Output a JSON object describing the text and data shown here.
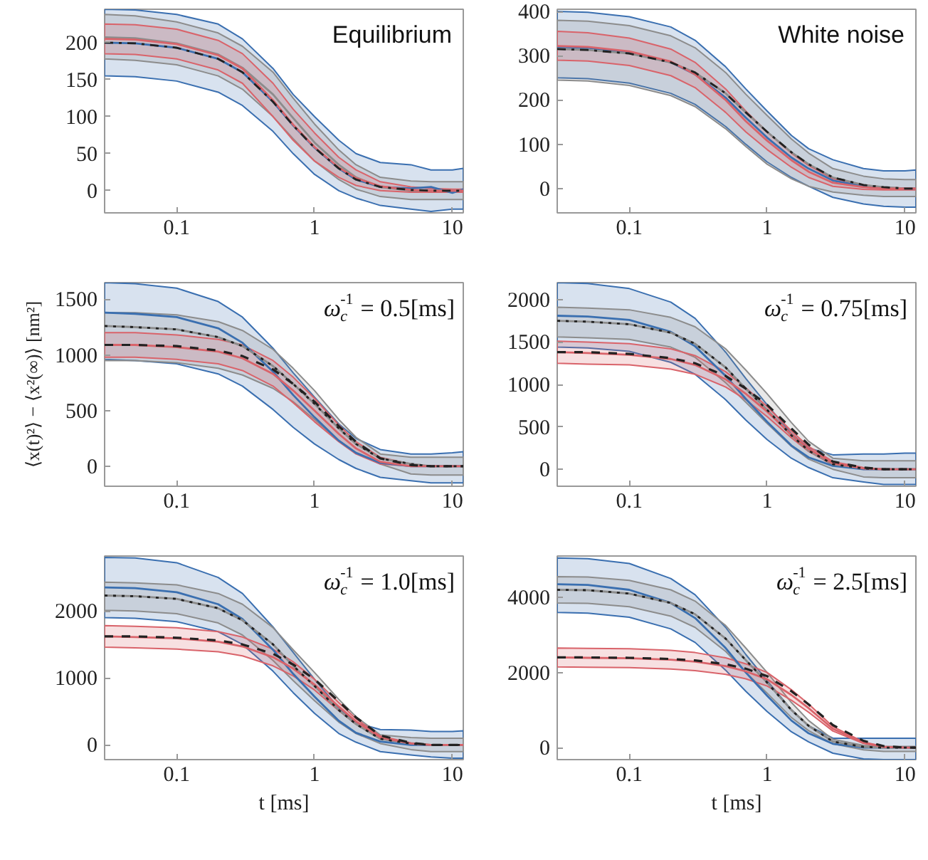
{
  "chart_data": [
    {
      "type": "line",
      "title": "Equilibrium",
      "log": "x",
      "xlim": [
        0.03,
        12
      ],
      "xticks": [
        0.1,
        1,
        10
      ],
      "ylim": [
        -30,
        245
      ],
      "yticks": [
        0,
        50,
        100,
        150,
        200
      ],
      "x": [
        0.03,
        0.05,
        0.1,
        0.2,
        0.3,
        0.5,
        0.7,
        1,
        1.5,
        2,
        3,
        5,
        7,
        10,
        12
      ],
      "series": [
        {
          "color": "#3a6fb0",
          "line_style": "solid",
          "values": [
            200,
            199,
            193,
            178,
            160,
            120,
            88,
            58,
            30,
            15,
            5,
            3,
            5,
            -3,
            2
          ],
          "upper": [
            245,
            244,
            238,
            225,
            205,
            165,
            130,
            100,
            68,
            50,
            38,
            35,
            28,
            28,
            30
          ],
          "lower": [
            155,
            154,
            148,
            133,
            115,
            80,
            50,
            22,
            0,
            -10,
            -20,
            -25,
            -28,
            -25,
            -25
          ]
        },
        {
          "color": "#8c8c8c",
          "line_style": "solid",
          "values": [
            207,
            206,
            199,
            184,
            166,
            130,
            98,
            65,
            35,
            18,
            5,
            0,
            0,
            0,
            0
          ],
          "upper": [
            238,
            236,
            228,
            213,
            195,
            160,
            125,
            90,
            55,
            35,
            18,
            13,
            12,
            12,
            12
          ],
          "lower": [
            178,
            176,
            170,
            155,
            137,
            100,
            70,
            40,
            15,
            2,
            -8,
            -12,
            -12,
            -12,
            -12
          ]
        },
        {
          "color": "#d9636a",
          "line_style": "solid",
          "values": [
            205,
            204,
            198,
            183,
            165,
            122,
            89,
            59,
            31,
            17,
            6,
            1,
            0,
            0,
            0
          ],
          "upper": [
            225,
            224,
            218,
            203,
            185,
            145,
            110,
            78,
            45,
            28,
            12,
            5,
            3,
            2,
            2
          ],
          "lower": [
            185,
            184,
            178,
            163,
            145,
            100,
            68,
            40,
            18,
            7,
            0,
            -2,
            -2,
            -2,
            -2
          ]
        },
        {
          "color": "#222222",
          "line_style": "dashdot",
          "values": [
            200,
            199,
            193,
            178,
            160,
            120,
            88,
            58,
            30,
            15,
            5,
            1,
            0,
            0,
            0
          ]
        }
      ]
    },
    {
      "type": "line",
      "title": "White noise",
      "log": "x",
      "xlim": [
        0.03,
        12
      ],
      "xticks": [
        0.1,
        1,
        10
      ],
      "ylim": [
        -55,
        405
      ],
      "yticks": [
        0,
        100,
        200,
        300,
        400
      ],
      "x": [
        0.03,
        0.05,
        0.1,
        0.2,
        0.3,
        0.5,
        0.7,
        1,
        1.5,
        2,
        3,
        5,
        7,
        10,
        12
      ],
      "series": [
        {
          "color": "#3a6fb0",
          "line_style": "solid",
          "values": [
            320,
            318,
            308,
            285,
            258,
            205,
            160,
            115,
            70,
            45,
            18,
            5,
            2,
            0,
            0
          ],
          "upper": [
            400,
            398,
            388,
            365,
            335,
            275,
            225,
            175,
            120,
            90,
            65,
            45,
            40,
            40,
            42
          ],
          "lower": [
            250,
            248,
            238,
            215,
            190,
            140,
            100,
            60,
            25,
            5,
            -20,
            -35,
            -40,
            -42,
            -42
          ]
        },
        {
          "color": "#8c8c8c",
          "line_style": "solid",
          "values": [
            315,
            313,
            305,
            285,
            262,
            215,
            172,
            128,
            82,
            55,
            25,
            8,
            3,
            0,
            0
          ],
          "upper": [
            380,
            378,
            368,
            345,
            318,
            262,
            213,
            165,
            112,
            80,
            45,
            28,
            22,
            20,
            20
          ],
          "lower": [
            245,
            243,
            233,
            210,
            185,
            135,
            95,
            55,
            22,
            5,
            -8,
            -15,
            -18,
            -18,
            -18
          ]
        },
        {
          "color": "#d9636a",
          "line_style": "solid",
          "values": [
            322,
            320,
            310,
            287,
            258,
            200,
            152,
            108,
            64,
            38,
            13,
            3,
            0,
            0,
            0
          ],
          "upper": [
            355,
            352,
            340,
            315,
            285,
            225,
            175,
            128,
            80,
            52,
            22,
            8,
            3,
            1,
            0
          ],
          "lower": [
            290,
            288,
            278,
            255,
            228,
            172,
            128,
            88,
            48,
            25,
            5,
            -2,
            -3,
            -3,
            -3
          ]
        },
        {
          "color": "#222222",
          "line_style": "dashdot",
          "values": [
            315,
            313,
            305,
            285,
            262,
            215,
            172,
            128,
            82,
            55,
            25,
            8,
            3,
            0,
            0
          ]
        }
      ]
    },
    {
      "type": "line",
      "title": "ω$_{c}$$^{-1}$ = 0.5[ms]",
      "ylabel": "⟨x(t)²⟩ − ⟨x²(∞)⟩ [nm²]",
      "log": "x",
      "xlim": [
        0.03,
        12
      ],
      "xticks": [
        0.1,
        1,
        10
      ],
      "ylim": [
        -180,
        1650
      ],
      "yticks": [
        0,
        500,
        1000,
        1500
      ],
      "x": [
        0.03,
        0.05,
        0.1,
        0.2,
        0.3,
        0.5,
        0.7,
        1,
        1.5,
        2,
        3,
        5,
        7,
        10,
        12
      ],
      "series": [
        {
          "color": "#3a6fb0",
          "line_style": "solid",
          "values": [
            1380,
            1370,
            1340,
            1240,
            1110,
            850,
            640,
            440,
            230,
            120,
            30,
            0,
            0,
            0,
            0
          ],
          "upper": [
            1650,
            1640,
            1600,
            1480,
            1340,
            1060,
            840,
            620,
            380,
            250,
            150,
            110,
            110,
            120,
            130
          ],
          "lower": [
            960,
            950,
            920,
            830,
            720,
            510,
            350,
            200,
            60,
            -20,
            -100,
            -130,
            -150,
            -150,
            -150
          ]
        },
        {
          "color": "#8c8c8c",
          "line_style": "solid",
          "values": [
            1260,
            1250,
            1230,
            1160,
            1080,
            900,
            740,
            560,
            340,
            200,
            70,
            20,
            0,
            0,
            0
          ],
          "upper": [
            1380,
            1380,
            1360,
            1300,
            1220,
            1050,
            880,
            680,
            420,
            260,
            110,
            80,
            80,
            80,
            80
          ],
          "lower": [
            950,
            950,
            930,
            880,
            820,
            700,
            580,
            420,
            230,
            120,
            20,
            -70,
            -80,
            -80,
            -80
          ]
        },
        {
          "color": "#d9636a",
          "line_style": "solid",
          "values": [
            1090,
            1090,
            1070,
            1030,
            970,
            830,
            680,
            500,
            290,
            160,
            40,
            0,
            0,
            0,
            0
          ],
          "upper": [
            1200,
            1200,
            1180,
            1140,
            1090,
            950,
            800,
            610,
            370,
            220,
            80,
            20,
            0,
            0,
            0
          ],
          "lower": [
            980,
            980,
            960,
            920,
            860,
            720,
            570,
            400,
            220,
            110,
            20,
            0,
            0,
            0,
            0
          ]
        },
        {
          "color": "#222222",
          "line_style": "dotted",
          "values": [
            1260,
            1250,
            1230,
            1160,
            1080,
            900,
            740,
            560,
            340,
            200,
            70,
            20,
            0,
            0,
            0
          ]
        },
        {
          "color": "#222222",
          "line_style": "dashed",
          "values": [
            1090,
            1090,
            1080,
            1040,
            990,
            870,
            740,
            580,
            360,
            220,
            70,
            10,
            0,
            0,
            0
          ]
        }
      ]
    },
    {
      "type": "line",
      "title": "ω$_{c}$$^{-1}$ = 0.75[ms]",
      "log": "x",
      "xlim": [
        0.03,
        12
      ],
      "xticks": [
        0.1,
        1,
        10
      ],
      "ylim": [
        -200,
        2200
      ],
      "yticks": [
        0,
        500,
        1000,
        1500,
        2000
      ],
      "x": [
        0.03,
        0.05,
        0.1,
        0.2,
        0.3,
        0.5,
        0.7,
        1,
        1.5,
        2,
        3,
        5,
        7,
        10,
        12
      ],
      "series": [
        {
          "color": "#3a6fb0",
          "line_style": "solid",
          "values": [
            1810,
            1800,
            1760,
            1620,
            1450,
            1100,
            830,
            560,
            280,
            140,
            40,
            0,
            0,
            0,
            0
          ],
          "upper": [
            2200,
            2190,
            2130,
            1970,
            1780,
            1380,
            1070,
            760,
            420,
            250,
            170,
            180,
            180,
            190,
            190
          ],
          "lower": [
            1440,
            1430,
            1390,
            1260,
            1120,
            820,
            580,
            350,
            130,
            20,
            -100,
            -150,
            -180,
            -180,
            -180
          ]
        },
        {
          "color": "#8c8c8c",
          "line_style": "solid",
          "values": [
            1750,
            1740,
            1710,
            1610,
            1480,
            1200,
            950,
            700,
            400,
            220,
            60,
            10,
            0,
            0,
            0
          ],
          "upper": [
            1910,
            1900,
            1880,
            1790,
            1680,
            1420,
            1170,
            890,
            550,
            330,
            130,
            100,
            100,
            100,
            100
          ],
          "lower": [
            1560,
            1550,
            1530,
            1440,
            1320,
            1020,
            790,
            540,
            270,
            120,
            0,
            -90,
            -100,
            -100,
            -100
          ]
        },
        {
          "color": "#d9636a",
          "line_style": "solid",
          "values": [
            1380,
            1370,
            1350,
            1300,
            1230,
            1060,
            890,
            680,
            410,
            240,
            70,
            10,
            0,
            0,
            0
          ],
          "upper": [
            1510,
            1500,
            1480,
            1420,
            1340,
            1150,
            960,
            740,
            450,
            270,
            90,
            20,
            0,
            0,
            0
          ],
          "lower": [
            1250,
            1240,
            1230,
            1180,
            1120,
            970,
            820,
            620,
            370,
            210,
            50,
            0,
            0,
            0,
            0
          ]
        },
        {
          "color": "#222222",
          "line_style": "dotted",
          "values": [
            1750,
            1740,
            1710,
            1610,
            1480,
            1200,
            950,
            700,
            400,
            220,
            60,
            10,
            0,
            0,
            0
          ]
        },
        {
          "color": "#222222",
          "line_style": "dashed",
          "values": [
            1380,
            1380,
            1360,
            1310,
            1250,
            1100,
            950,
            760,
            480,
            290,
            90,
            20,
            0,
            0,
            0
          ]
        }
      ]
    },
    {
      "type": "line",
      "title": "ω$_{c}$$^{-1}$ = 1.0[ms]",
      "xlabel": "t [ms]",
      "log": "x",
      "xlim": [
        0.03,
        12
      ],
      "xticks": [
        0.1,
        1,
        10
      ],
      "ylim": [
        -220,
        2820
      ],
      "yticks": [
        0,
        1000,
        2000
      ],
      "x": [
        0.03,
        0.05,
        0.1,
        0.2,
        0.3,
        0.5,
        0.7,
        1,
        1.5,
        2,
        3,
        5,
        7,
        10,
        12
      ],
      "series": [
        {
          "color": "#3a6fb0",
          "line_style": "solid",
          "values": [
            2350,
            2340,
            2280,
            2100,
            1880,
            1420,
            1060,
            720,
            360,
            180,
            50,
            0,
            0,
            0,
            0
          ],
          "upper": [
            2800,
            2790,
            2720,
            2500,
            2260,
            1760,
            1380,
            980,
            550,
            330,
            230,
            220,
            200,
            200,
            210
          ],
          "lower": [
            1900,
            1890,
            1840,
            1690,
            1500,
            1100,
            780,
            470,
            170,
            40,
            -100,
            -150,
            -180,
            -200,
            -200
          ]
        },
        {
          "color": "#8c8c8c",
          "line_style": "solid",
          "values": [
            2230,
            2220,
            2180,
            2040,
            1860,
            1500,
            1180,
            880,
            520,
            310,
            90,
            20,
            0,
            0,
            0
          ],
          "upper": [
            2430,
            2420,
            2390,
            2260,
            2100,
            1750,
            1420,
            1080,
            680,
            420,
            150,
            110,
            100,
            100,
            100
          ],
          "lower": [
            2010,
            2000,
            1960,
            1820,
            1640,
            1260,
            960,
            660,
            340,
            170,
            20,
            -70,
            -100,
            -100,
            -100
          ]
        },
        {
          "color": "#d9636a",
          "line_style": "solid",
          "values": [
            1620,
            1610,
            1590,
            1540,
            1470,
            1310,
            1140,
            900,
            570,
            350,
            110,
            20,
            0,
            0,
            0
          ],
          "upper": [
            1780,
            1770,
            1750,
            1690,
            1610,
            1430,
            1240,
            980,
            630,
            390,
            130,
            30,
            0,
            0,
            0
          ],
          "lower": [
            1460,
            1450,
            1430,
            1390,
            1330,
            1180,
            1030,
            820,
            510,
            310,
            90,
            20,
            0,
            0,
            0
          ]
        },
        {
          "color": "#222222",
          "line_style": "dotted",
          "values": [
            2230,
            2220,
            2180,
            2040,
            1860,
            1500,
            1180,
            880,
            520,
            310,
            90,
            20,
            0,
            0,
            0
          ]
        },
        {
          "color": "#222222",
          "line_style": "dashed",
          "values": [
            1620,
            1620,
            1600,
            1560,
            1500,
            1360,
            1200,
            980,
            650,
            410,
            140,
            30,
            0,
            0,
            0
          ]
        }
      ]
    },
    {
      "type": "line",
      "title": "ω$_{c}$$^{-1}$ = 2.5[ms]",
      "xlabel": "t [ms]",
      "log": "x",
      "xlim": [
        0.03,
        12
      ],
      "xticks": [
        0.1,
        1,
        10
      ],
      "ylim": [
        -320,
        5100
      ],
      "yticks": [
        0,
        2000,
        4000
      ],
      "x": [
        0.03,
        0.05,
        0.1,
        0.2,
        0.3,
        0.5,
        0.7,
        1,
        1.5,
        2,
        3,
        5,
        7,
        10,
        12
      ],
      "series": [
        {
          "color": "#3a6fb0",
          "line_style": "solid",
          "values": [
            4350,
            4330,
            4200,
            3850,
            3450,
            2650,
            2000,
            1380,
            720,
            380,
            100,
            0,
            0,
            0,
            0
          ],
          "upper": [
            5050,
            5030,
            4900,
            4500,
            4070,
            3200,
            2480,
            1780,
            1010,
            580,
            250,
            250,
            250,
            250,
            250
          ],
          "lower": [
            3600,
            3580,
            3470,
            3160,
            2800,
            2060,
            1500,
            960,
            420,
            150,
            -150,
            -300,
            -320,
            -320,
            -320
          ]
        },
        {
          "color": "#8c8c8c",
          "line_style": "solid",
          "values": [
            4200,
            4190,
            4100,
            3850,
            3550,
            2900,
            2330,
            1730,
            1000,
            580,
            160,
            20,
            0,
            0,
            0
          ],
          "upper": [
            4550,
            4540,
            4450,
            4200,
            3900,
            3250,
            2650,
            2000,
            1200,
            720,
            220,
            60,
            30,
            30,
            30
          ],
          "lower": [
            3850,
            3840,
            3750,
            3500,
            3200,
            2560,
            2000,
            1450,
            800,
            450,
            100,
            -60,
            -100,
            -100,
            -100
          ]
        },
        {
          "color": "#d9636a",
          "line_style": "solid",
          "values": [
            2400,
            2390,
            2380,
            2340,
            2290,
            2170,
            2030,
            1820,
            1400,
            1050,
            500,
            130,
            20,
            0,
            0
          ],
          "upper": [
            2650,
            2640,
            2630,
            2590,
            2530,
            2390,
            2230,
            2000,
            1540,
            1160,
            560,
            150,
            30,
            0,
            0
          ],
          "lower": [
            2150,
            2140,
            2130,
            2090,
            2050,
            1950,
            1830,
            1640,
            1260,
            940,
            440,
            110,
            20,
            0,
            0
          ]
        },
        {
          "color": "#222222",
          "line_style": "dotted",
          "values": [
            4200,
            4190,
            4100,
            3850,
            3550,
            2900,
            2330,
            1730,
            1000,
            580,
            160,
            20,
            0,
            0,
            0
          ]
        },
        {
          "color": "#222222",
          "line_style": "dashed",
          "values": [
            2400,
            2400,
            2390,
            2360,
            2320,
            2220,
            2100,
            1900,
            1500,
            1150,
            600,
            180,
            40,
            0,
            0
          ]
        }
      ]
    }
  ]
}
